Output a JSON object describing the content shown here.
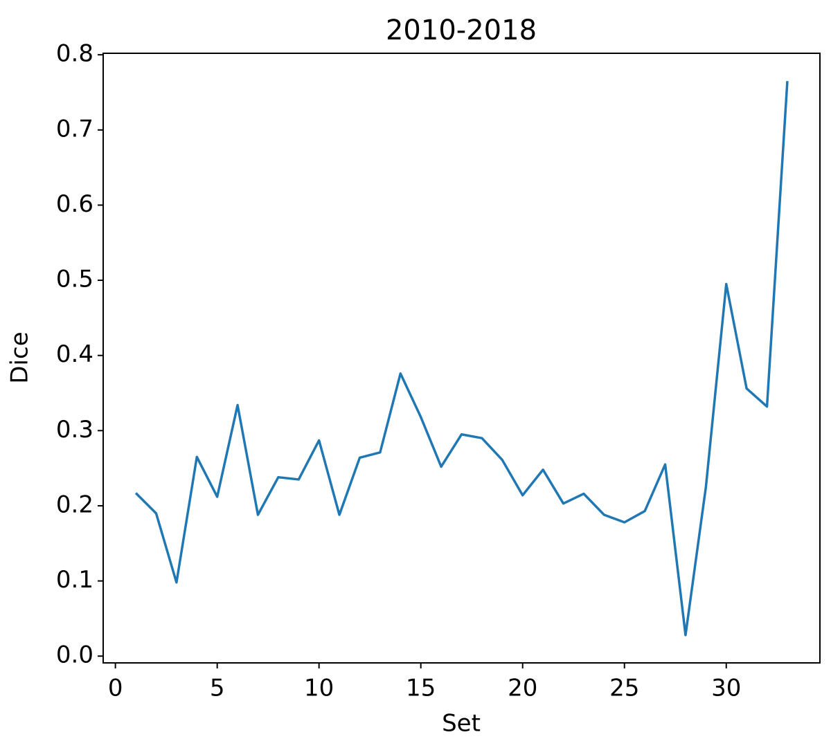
{
  "chart_data": {
    "type": "line",
    "title": "2010-2018",
    "x_label": "Set",
    "y_label": "Dice",
    "x": [
      1,
      2,
      3,
      4,
      5,
      6,
      7,
      8,
      9,
      10,
      11,
      12,
      13,
      14,
      15,
      16,
      17,
      18,
      19,
      20,
      21,
      22,
      23,
      24,
      25,
      26,
      27,
      28,
      29,
      30,
      31,
      32,
      33
    ],
    "series": [
      {
        "name": "Dice",
        "color": "#1f77b4",
        "values": [
          0.217,
          0.19,
          0.098,
          0.265,
          0.212,
          0.334,
          0.188,
          0.238,
          0.235,
          0.287,
          0.188,
          0.264,
          0.271,
          0.376,
          0.318,
          0.252,
          0.295,
          0.29,
          0.261,
          0.214,
          0.248,
          0.203,
          0.216,
          0.188,
          0.178,
          0.193,
          0.255,
          0.028,
          0.225,
          0.495,
          0.356,
          0.332,
          0.765
        ]
      }
    ],
    "xlim": [
      -0.6,
      34.6
    ],
    "xticks": [
      0,
      5,
      10,
      15,
      20,
      25,
      30
    ],
    "ylim": [
      -0.009,
      0.802
    ],
    "yticks": [
      {
        "value": 0,
        "label": "0.0"
      },
      0.1,
      0.2,
      0.3,
      0.4,
      0.5,
      0.6,
      0.7,
      0.8
    ]
  }
}
